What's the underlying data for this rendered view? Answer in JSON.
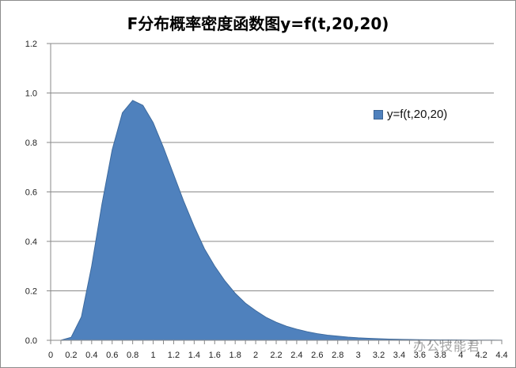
{
  "chart_data": {
    "type": "area",
    "title": "F分布概率密度函数图y=f(t,20,20)",
    "xlabel": "",
    "ylabel": "",
    "ylim": [
      0,
      1.2
    ],
    "yticks": [
      "0.0",
      "0.2",
      "0.4",
      "0.6",
      "0.8",
      "1.0",
      "1.2"
    ],
    "xticks": [
      "0",
      "0.2",
      "0.4",
      "0.6",
      "0.8",
      "1",
      "1.2",
      "1.4",
      "1.6",
      "1.8",
      "2",
      "2.2",
      "2.4",
      "2.6",
      "2.8",
      "3",
      "3.2",
      "3.4",
      "3.6",
      "3.8",
      "4",
      "4.2",
      "4.4"
    ],
    "grid": "horizontal",
    "legend_position": "right",
    "color": "#4f81bd",
    "series": [
      {
        "name": "y=f(t,20,20)",
        "x": [
          0,
          0.1,
          0.2,
          0.3,
          0.4,
          0.5,
          0.6,
          0.7,
          0.8,
          0.9,
          1.0,
          1.1,
          1.2,
          1.3,
          1.4,
          1.5,
          1.6,
          1.7,
          1.8,
          1.9,
          2.0,
          2.1,
          2.2,
          2.3,
          2.4,
          2.5,
          2.6,
          2.7,
          2.8,
          2.9,
          3.0,
          3.1,
          3.2,
          3.3,
          3.4,
          3.5,
          3.6,
          3.7,
          3.8,
          3.9,
          4.0,
          4.1,
          4.2,
          4.3,
          4.4
        ],
        "values": [
          0,
          0.0003,
          0.012,
          0.095,
          0.3,
          0.55,
          0.77,
          0.92,
          0.97,
          0.95,
          0.88,
          0.78,
          0.67,
          0.56,
          0.46,
          0.37,
          0.3,
          0.24,
          0.19,
          0.15,
          0.12,
          0.093,
          0.073,
          0.057,
          0.045,
          0.035,
          0.027,
          0.021,
          0.017,
          0.013,
          0.01,
          0.008,
          0.0065,
          0.005,
          0.004,
          0.0032,
          0.0026,
          0.0021,
          0.0017,
          0.0014,
          0.0011,
          0.0009,
          0.0007,
          0.0006,
          0.0005
        ]
      }
    ]
  },
  "legend": {
    "label": "y=f(t,20,20)"
  },
  "watermark": "办公技能君"
}
